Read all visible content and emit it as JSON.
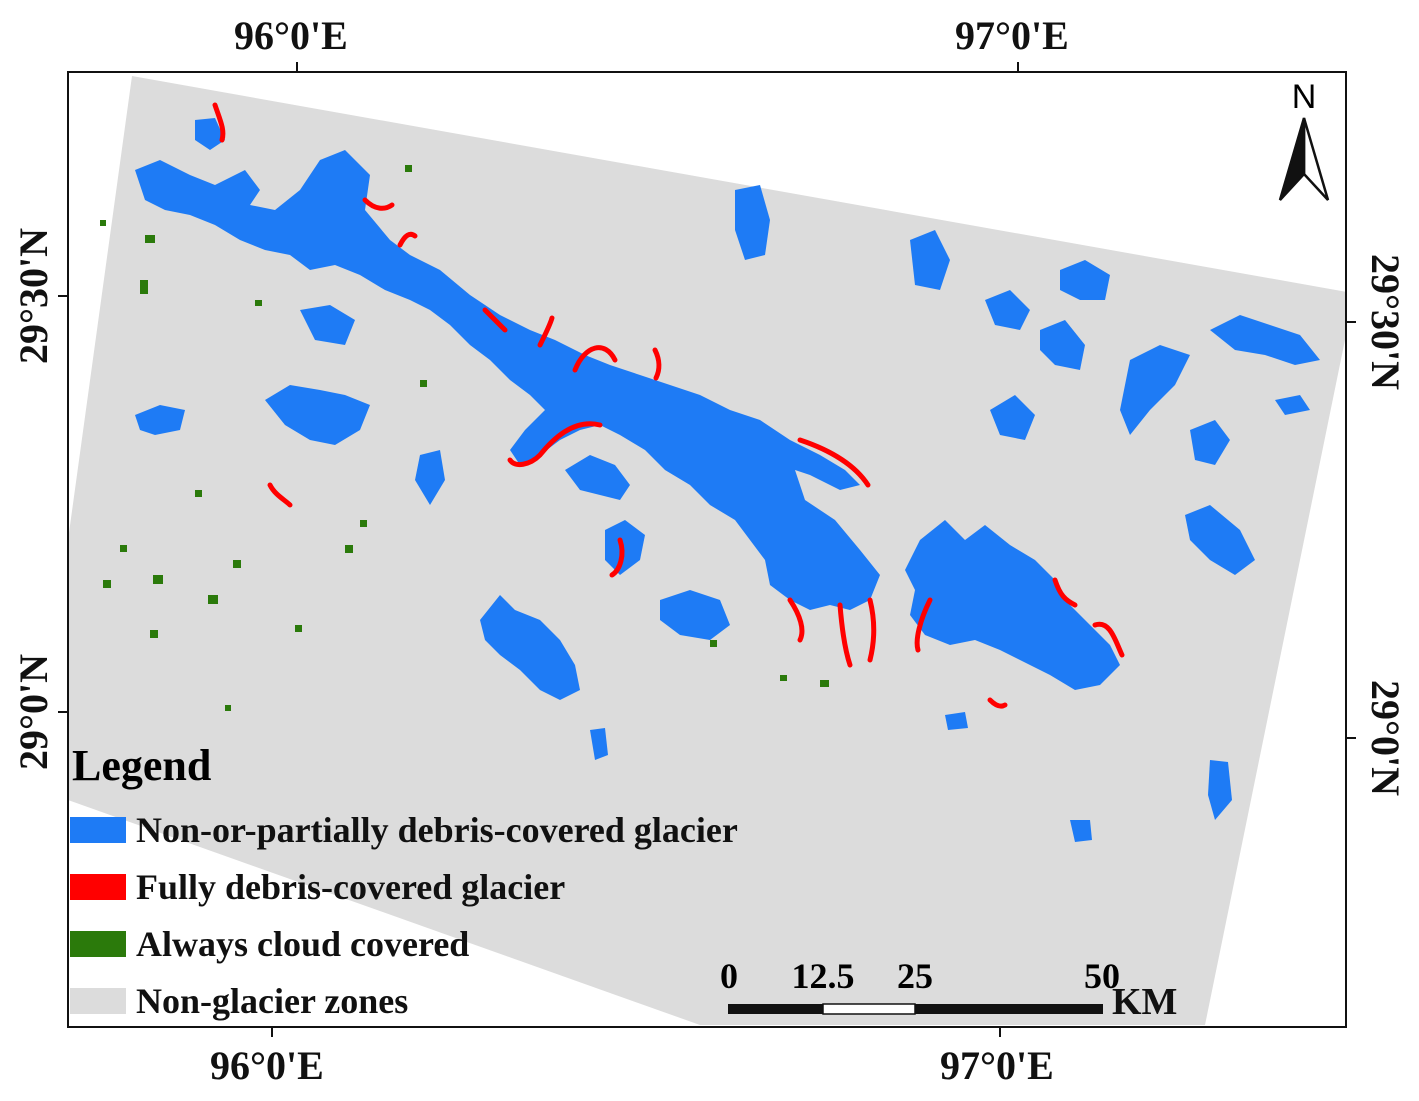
{
  "axes": {
    "top_labels": [
      "96°0'E",
      "97°0'E"
    ],
    "bottom_labels": [
      "96°0'E",
      "97°0'E"
    ],
    "left_labels": [
      "29°30'N",
      "29°0'N"
    ],
    "right_labels": [
      "29°30'N",
      "29°0'N"
    ]
  },
  "north_arrow": {
    "label": "N",
    "icon": "north-arrow-icon"
  },
  "legend": {
    "title": "Legend",
    "items": [
      {
        "label": "Non-or-partially debris-covered glacier",
        "color": "#1e7bf5"
      },
      {
        "label": "Fully debris-covered glacier",
        "color": "#ff0000"
      },
      {
        "label": "Always cloud covered",
        "color": "#2b7a0b"
      },
      {
        "label": "Non-glacier zones",
        "color": "#dcdcdc"
      }
    ]
  },
  "scale_bar": {
    "ticks": [
      "0",
      "12.5",
      "25",
      "50"
    ],
    "unit": "KM"
  },
  "colors": {
    "frame": "#111111",
    "background": "#ffffff",
    "non_glacier": "#dcdcdc",
    "glacier_blue": "#1e7bf5",
    "debris_red": "#ff0000",
    "cloud_green": "#2b7a0b"
  }
}
